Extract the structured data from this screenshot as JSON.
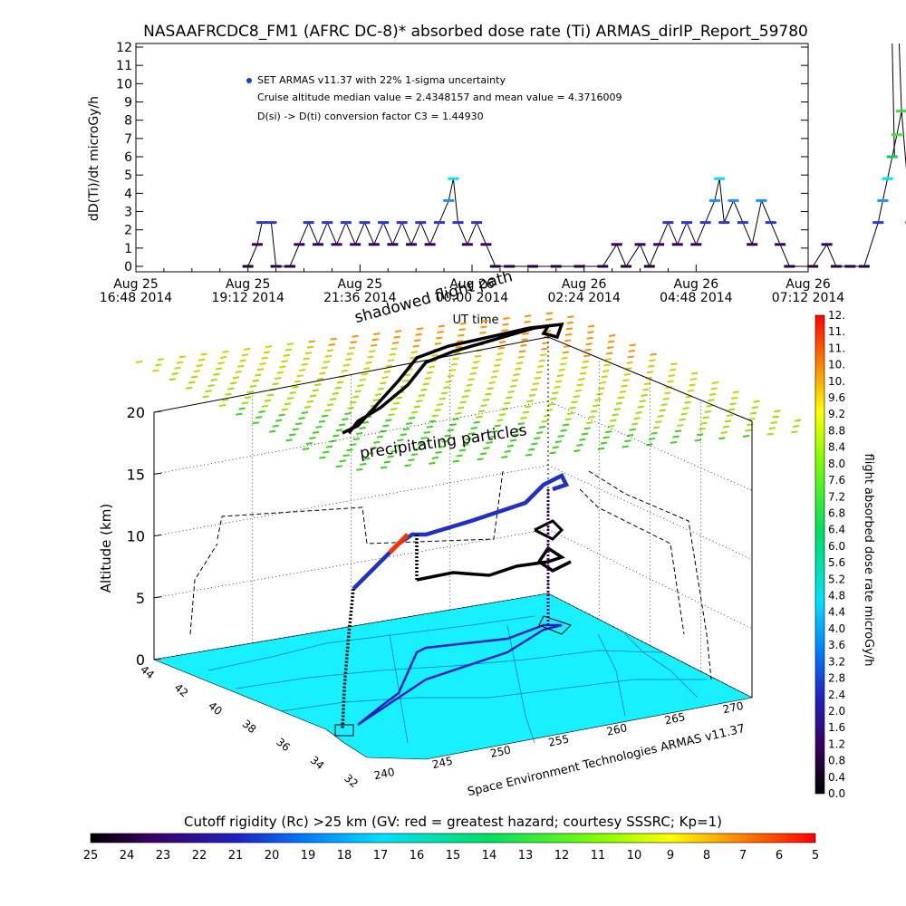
{
  "title": "NASAAFRCDC8_FM1 (AFRC DC-8)* absorbed dose rate (Ti) ARMAS_dirIP_Report_59780",
  "top_chart": {
    "type": "scatter",
    "ylabel": "dD(Ti)/dt microGy/h",
    "xlabel": "UT time",
    "yticks": [
      "0",
      "1",
      "2",
      "3",
      "4",
      "5",
      "6",
      "7",
      "8",
      "9",
      "10",
      "11",
      "12"
    ],
    "ylim": [
      0,
      12
    ],
    "xticks": [
      {
        "l1": "Aug 25",
        "l2": "16:48 2014"
      },
      {
        "l1": "Aug 25",
        "l2": "19:12 2014"
      },
      {
        "l1": "Aug 25",
        "l2": "21:36 2014"
      },
      {
        "l1": "Aug 26",
        "l2": "00:00 2014"
      },
      {
        "l1": "Aug 26",
        "l2": "02:24 2014"
      },
      {
        "l1": "Aug 26",
        "l2": "04:48 2014"
      },
      {
        "l1": "Aug 26",
        "l2": "07:12 2014"
      }
    ],
    "legend_text": "SET ARMAS v11.37 with 22% 1-sigma uncertainty",
    "annotations": [
      "Cruise altitude median value = 2.4348157 and mean value = 4.3716009",
      "D(si) -> D(ti) conversion factor C3 = 1.44930"
    ]
  },
  "chart_data": [
    {
      "type": "scatter",
      "title": "NASAAFRCDC8_FM1 (AFRC DC-8)* absorbed dose rate (Ti) ARMAS_dirIP_Report_59780",
      "xlabel": "UT time",
      "ylabel": "dD(Ti)/dt microGy/h",
      "ylim": [
        0,
        12
      ],
      "x_unit": "hours after Aug 25 16:48 2014",
      "series": [
        {
          "name": "SET ARMAS v11.37 with 22% 1-sigma uncertainty",
          "points": [
            [
              2.4,
              0
            ],
            [
              2.6,
              1.2
            ],
            [
              2.7,
              2.4
            ],
            [
              2.9,
              2.4
            ],
            [
              3.0,
              0
            ],
            [
              3.3,
              0
            ],
            [
              3.5,
              1.2
            ],
            [
              3.7,
              2.4
            ],
            [
              3.9,
              1.2
            ],
            [
              4.1,
              2.4
            ],
            [
              4.3,
              1.2
            ],
            [
              4.5,
              2.4
            ],
            [
              4.7,
              1.2
            ],
            [
              4.9,
              2.4
            ],
            [
              5.1,
              1.2
            ],
            [
              5.3,
              2.4
            ],
            [
              5.5,
              1.2
            ],
            [
              5.7,
              2.4
            ],
            [
              5.9,
              1.2
            ],
            [
              6.1,
              2.4
            ],
            [
              6.3,
              1.2
            ],
            [
              6.5,
              2.4
            ],
            [
              6.7,
              3.6
            ],
            [
              6.8,
              4.8
            ],
            [
              6.9,
              2.4
            ],
            [
              7.1,
              1.2
            ],
            [
              7.3,
              2.4
            ],
            [
              7.5,
              1.2
            ],
            [
              7.7,
              0
            ],
            [
              8.0,
              0
            ],
            [
              8.5,
              0
            ],
            [
              9.0,
              0
            ],
            [
              9.5,
              0
            ],
            [
              10.0,
              0
            ],
            [
              10.3,
              1.2
            ],
            [
              10.5,
              0
            ],
            [
              10.8,
              1.2
            ],
            [
              11.0,
              0
            ],
            [
              11.2,
              1.2
            ],
            [
              11.4,
              2.4
            ],
            [
              11.6,
              1.2
            ],
            [
              11.8,
              2.4
            ],
            [
              12.0,
              1.2
            ],
            [
              12.2,
              2.4
            ],
            [
              12.4,
              3.6
            ],
            [
              12.5,
              4.8
            ],
            [
              12.6,
              2.4
            ],
            [
              12.8,
              3.6
            ],
            [
              13.0,
              2.4
            ],
            [
              13.2,
              1.2
            ],
            [
              13.4,
              3.6
            ],
            [
              13.6,
              2.4
            ],
            [
              13.8,
              1.2
            ],
            [
              14.0,
              0
            ],
            [
              14.5,
              0
            ],
            [
              14.8,
              1.2
            ],
            [
              15.0,
              0
            ],
            [
              15.3,
              0
            ],
            [
              15.6,
              0
            ],
            [
              15.9,
              2.4
            ],
            [
              16.0,
              3.6
            ],
            [
              16.1,
              4.8
            ],
            [
              16.2,
              6.0
            ],
            [
              16.3,
              7.2
            ],
            [
              16.4,
              8.5
            ],
            [
              16.6,
              2.4
            ],
            [
              16.8,
              1.2
            ],
            [
              17.0,
              2.4
            ],
            [
              17.2,
              1.2
            ],
            [
              17.4,
              2.4
            ],
            [
              17.6,
              1.2
            ],
            [
              17.8,
              2.4
            ],
            [
              18.0,
              1.2
            ],
            [
              18.2,
              2.4
            ],
            [
              18.4,
              3.6
            ],
            [
              18.6,
              2.4
            ],
            [
              18.8,
              1.2
            ],
            [
              19.0,
              0
            ],
            [
              19.4,
              0
            ],
            [
              19.6,
              6.1
            ],
            [
              19.8,
              6.1
            ],
            [
              19.9,
              3.6
            ],
            [
              20.0,
              0
            ],
            [
              20.2,
              0
            ]
          ]
        }
      ]
    },
    {
      "type": "scatter",
      "title": "3D flight path of absorbed dose rate",
      "zlabel": "Altitude (km)",
      "zlim": [
        0,
        20
      ],
      "z_ticks": [
        "0",
        "5",
        "10",
        "15",
        "20"
      ],
      "lat_ticks": [
        "44",
        "42",
        "40",
        "38",
        "36",
        "34",
        "32"
      ],
      "lon_ticks": [
        "240",
        "245",
        "250",
        "255",
        "260",
        "265",
        "270"
      ],
      "colorbar_label": "flight absorbed dose rate microGy/h",
      "colorbar_ticks": [
        "0.0",
        "0.4",
        "0.8",
        "1.2",
        "1.6",
        "2.0",
        "2.4",
        "2.8",
        "3.2",
        "3.6",
        "4.0",
        "4.4",
        "4.8",
        "5.2",
        "5.6",
        "6.0",
        "6.4",
        "6.8",
        "7.2",
        "7.6",
        "8.0",
        "8.4",
        "8.8",
        "9.2",
        "9.6",
        "10.",
        "10.",
        "11.",
        "11.",
        "12."
      ],
      "rigidity_label": "Cutoff rigidity (Rc) >25 km (GV: red = greatest hazard; courtesy SSSRC; Kp=1)",
      "rigidity_ticks": [
        "25",
        "24",
        "23",
        "22",
        "21",
        "20",
        "19",
        "18",
        "17",
        "16",
        "15",
        "14",
        "13",
        "12",
        "11",
        "10",
        "9",
        "8",
        "7",
        "6",
        "5"
      ]
    }
  ],
  "labels3d": {
    "zlabel": "Altitude (km)",
    "precip": "precipitating particles",
    "shadow": "shadowed flight path",
    "credit": "Space Environment Technologies ARMAS v11.37"
  },
  "colors": {
    "low": "#000000",
    "mid": "#00e5ff",
    "high": "#ff0000",
    "cyan_floor": "#19f0ff"
  }
}
